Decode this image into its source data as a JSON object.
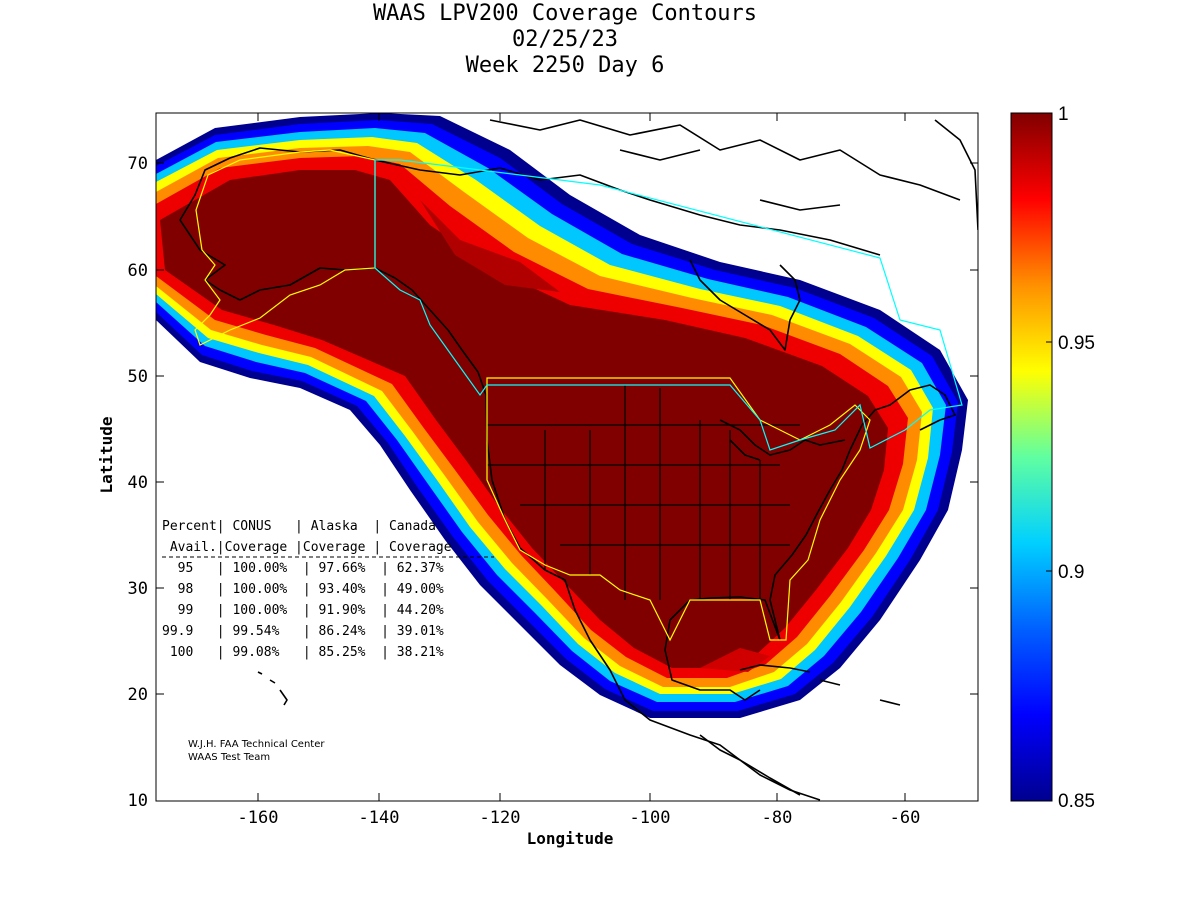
{
  "title": {
    "line1": "WAAS LPV200 Coverage Contours",
    "line2": "02/25/23",
    "line3": "Week 2250 Day 6"
  },
  "axes": {
    "xlabel": "Longitude",
    "ylabel": "Latitude",
    "x_ticks": [
      "-160",
      "-140",
      "-120",
      "-100",
      "-80",
      "-60"
    ],
    "y_ticks": [
      "70",
      "60",
      "50",
      "40",
      "30",
      "20",
      "10"
    ],
    "xlim": [
      -175,
      -50
    ],
    "ylim": [
      10,
      75
    ]
  },
  "colorbar": {
    "ticks": [
      "1",
      "0.95",
      "0.9",
      "0.85"
    ],
    "range": [
      0.85,
      1
    ],
    "colormap": "jet",
    "colors": [
      "#00008f",
      "#0000ff",
      "#0080ff",
      "#00ffff",
      "#80ff80",
      "#ffff00",
      "#ff8000",
      "#ff0000",
      "#800000"
    ]
  },
  "table": {
    "header1": "Percent| CONUS   | Alaska  | Canada",
    "header2": " Avail.|Coverage |Coverage | Coverage",
    "rows": [
      "  95   | 100.00%  | 97.66%  | 62.37%",
      "  98   | 100.00%  | 93.40%  | 49.00%",
      "  99   | 100.00%  | 91.90%  | 44.20%",
      "99.9   | 99.54%   | 86.24%  | 39.01%",
      " 100   | 99.08%   | 85.25%  | 38.21%"
    ]
  },
  "credit": {
    "line1": "W.J.H. FAA Technical Center",
    "line2": "WAAS Test Team"
  },
  "colors": {
    "ring_outer": "#00008f",
    "ring_core": "#800000",
    "boundary_alaska_conus": "#ffff00",
    "boundary_canada": "#00ffff"
  }
}
